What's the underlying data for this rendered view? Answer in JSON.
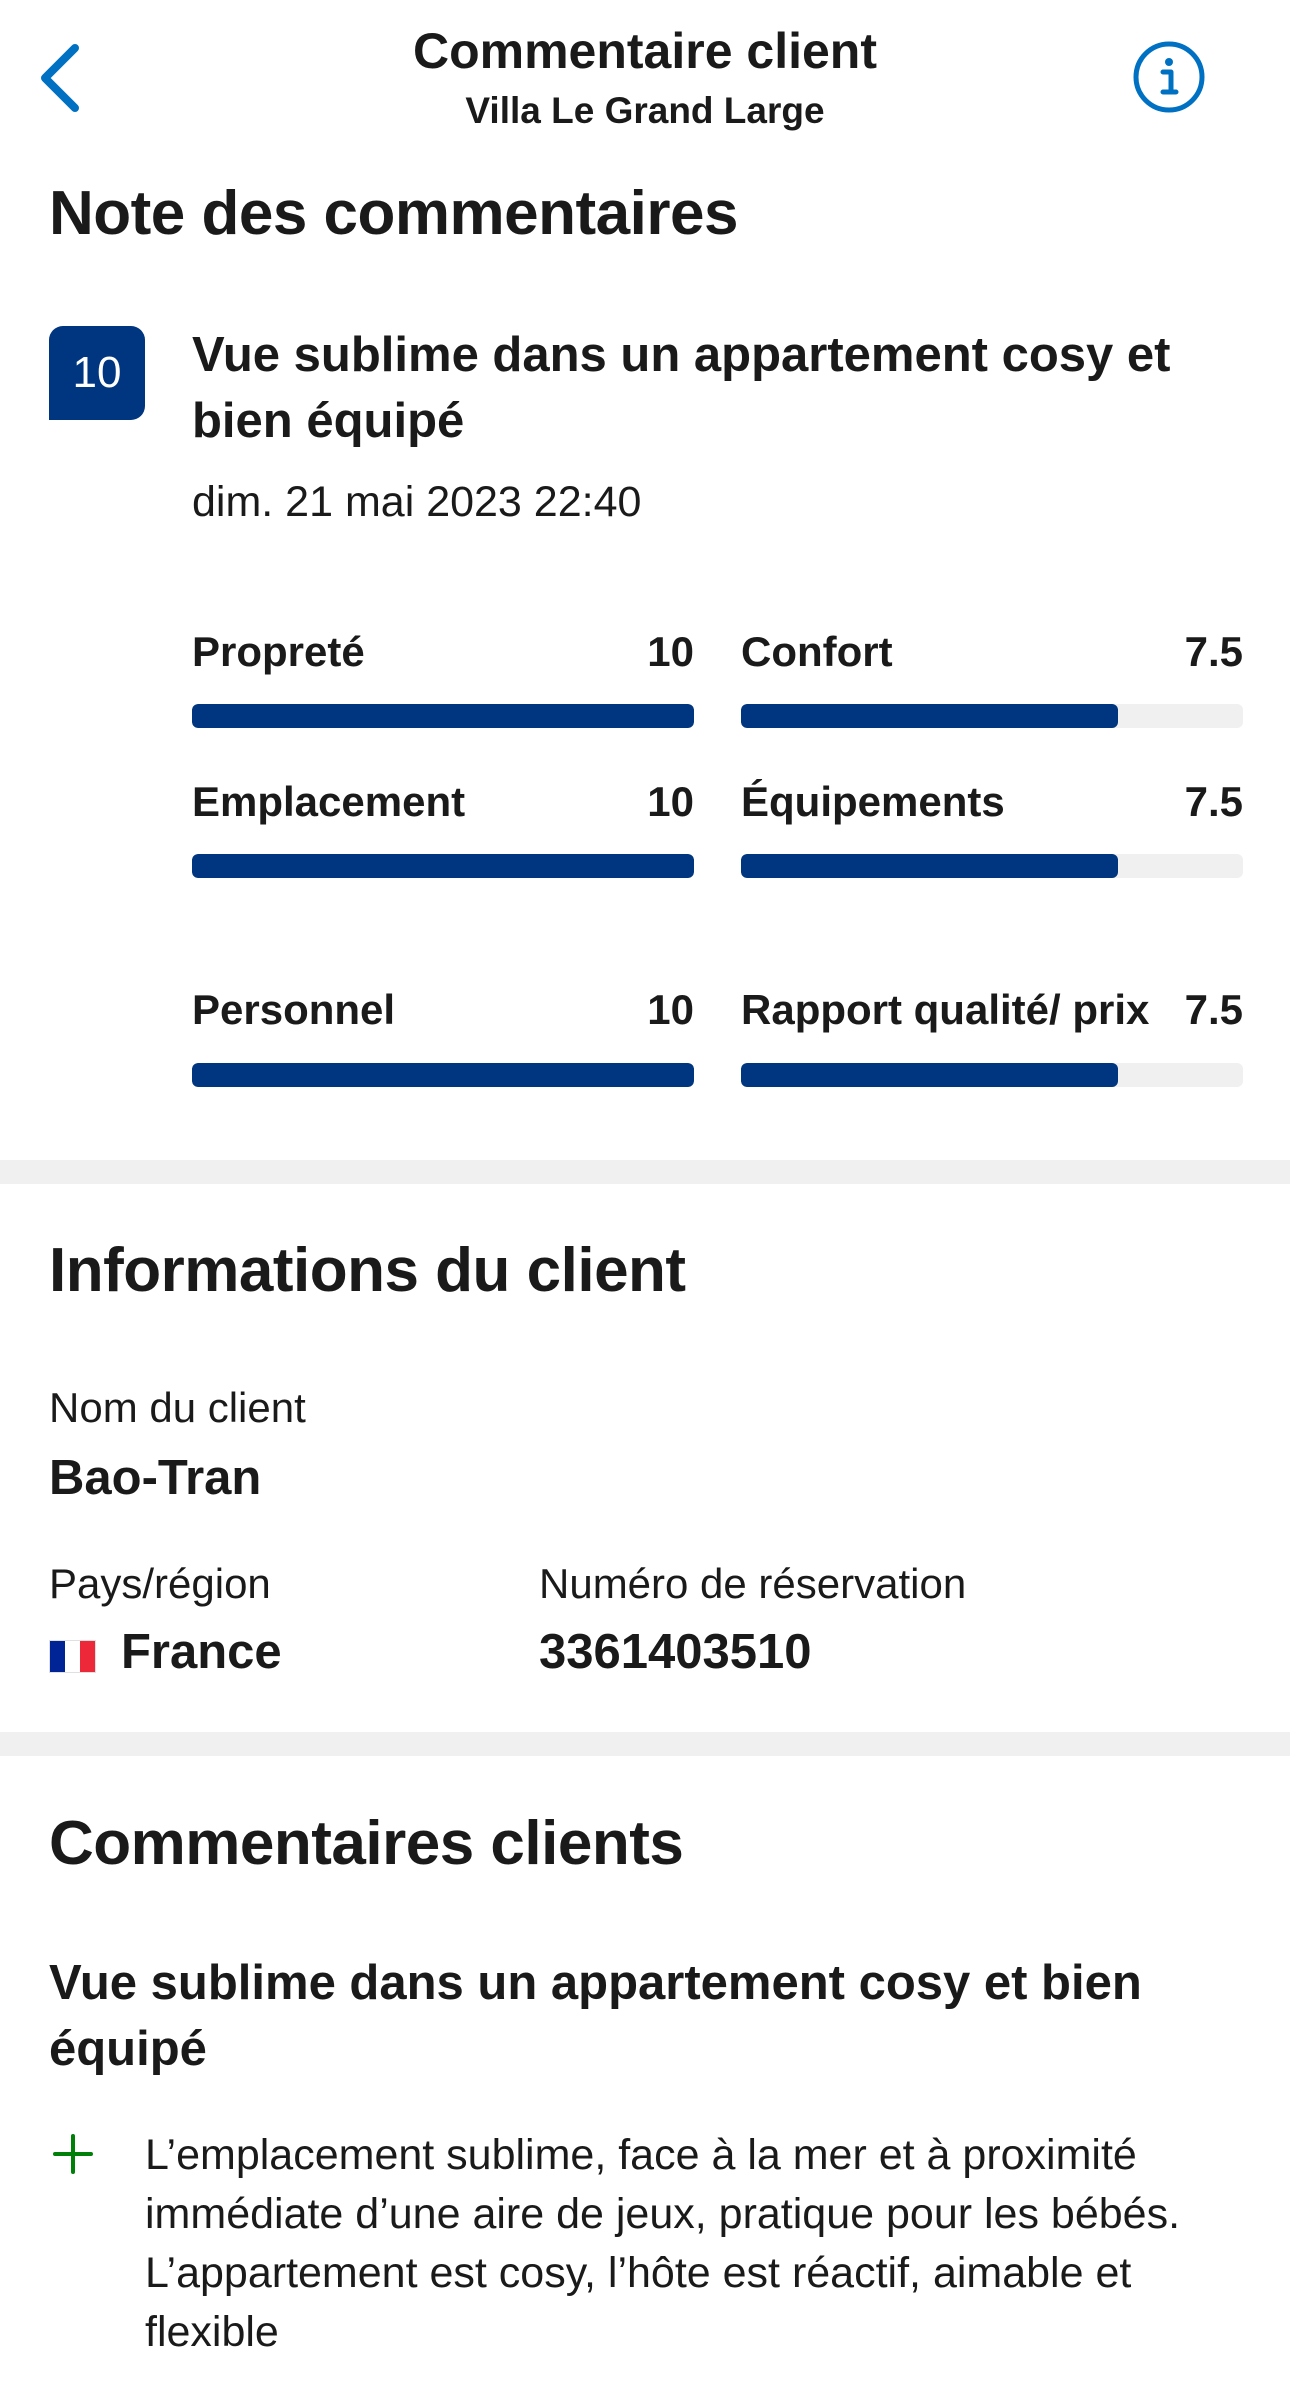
{
  "header": {
    "title": "Commentaire client",
    "subtitle": "Villa Le Grand Large",
    "back_icon": "chevron-left-icon",
    "info_icon": "info-icon",
    "accent_color": "#0071c2"
  },
  "review_score": {
    "heading": "Note des commentaires",
    "score": "10",
    "title": "Vue sublime dans un appartement cosy et bien équipé",
    "date": "dim. 21 mai 2023 22:40",
    "bar_color": "#003580",
    "ratings": [
      {
        "label": "Propreté",
        "value": "10",
        "fill": 1.0
      },
      {
        "label": "Confort",
        "value": "7.5",
        "fill": 0.75
      },
      {
        "label": "Emplacement",
        "value": "10",
        "fill": 1.0
      },
      {
        "label": "Équipements",
        "value": "7.5",
        "fill": 0.75
      },
      {
        "label": "Personnel",
        "value": "10",
        "fill": 1.0
      },
      {
        "label": "Rapport qualité/ prix",
        "value": "7.5",
        "fill": 0.75
      }
    ]
  },
  "guest_info": {
    "heading": "Informations du client",
    "name_label": "Nom du client",
    "name_value": "Bao-Tran",
    "country_label": "Pays/région",
    "country_value": "France",
    "country_flag_icon": "france-flag-icon",
    "booking_label": "Numéro de réservation",
    "booking_value": "3361403510"
  },
  "guest_comments": {
    "heading": "Commentaires clients",
    "title": "Vue sublime dans un appartement cosy et bien équipé",
    "positive_icon": "plus-icon",
    "positive_color": "#008009",
    "positive_text": "L’emplacement sublime, face à la mer et à proximité immédiate d’une aire de jeux, pratique pour les bébés. L’appartement est cosy, l’hôte est réactif, aimable et flexible"
  }
}
